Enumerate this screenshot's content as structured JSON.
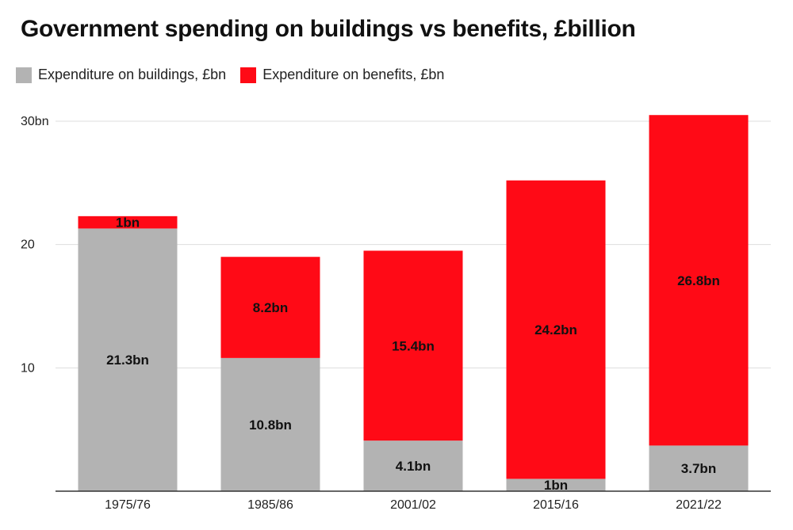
{
  "chart_data": {
    "type": "bar",
    "stacked": true,
    "title": "Government spending on buildings vs benefits, £billion",
    "categories": [
      "1975/76",
      "1985/86",
      "2001/02",
      "2015/16",
      "2021/22"
    ],
    "series": [
      {
        "name": "Expenditure on buildings, £bn",
        "color": "#b3b3b3",
        "values": [
          21.3,
          10.8,
          4.1,
          1,
          3.7
        ],
        "labels": [
          "21.3bn",
          "10.8bn",
          "4.1bn",
          "1bn",
          "3.7bn"
        ]
      },
      {
        "name": "Expenditure on benefits, £bn",
        "color": "#ff0a16",
        "values": [
          1,
          8.2,
          15.4,
          24.2,
          26.8
        ],
        "labels": [
          "1bn",
          "8.2bn",
          "15.4bn",
          "24.2bn",
          "26.8bn"
        ]
      }
    ],
    "ylim": [
      0,
      30
    ],
    "yticks": [
      {
        "value": 10,
        "label": "10"
      },
      {
        "value": 20,
        "label": "20"
      },
      {
        "value": 30,
        "label": "30bn"
      }
    ],
    "xlabel": "",
    "ylabel": "",
    "grid": true,
    "legend_position": "top-left"
  }
}
